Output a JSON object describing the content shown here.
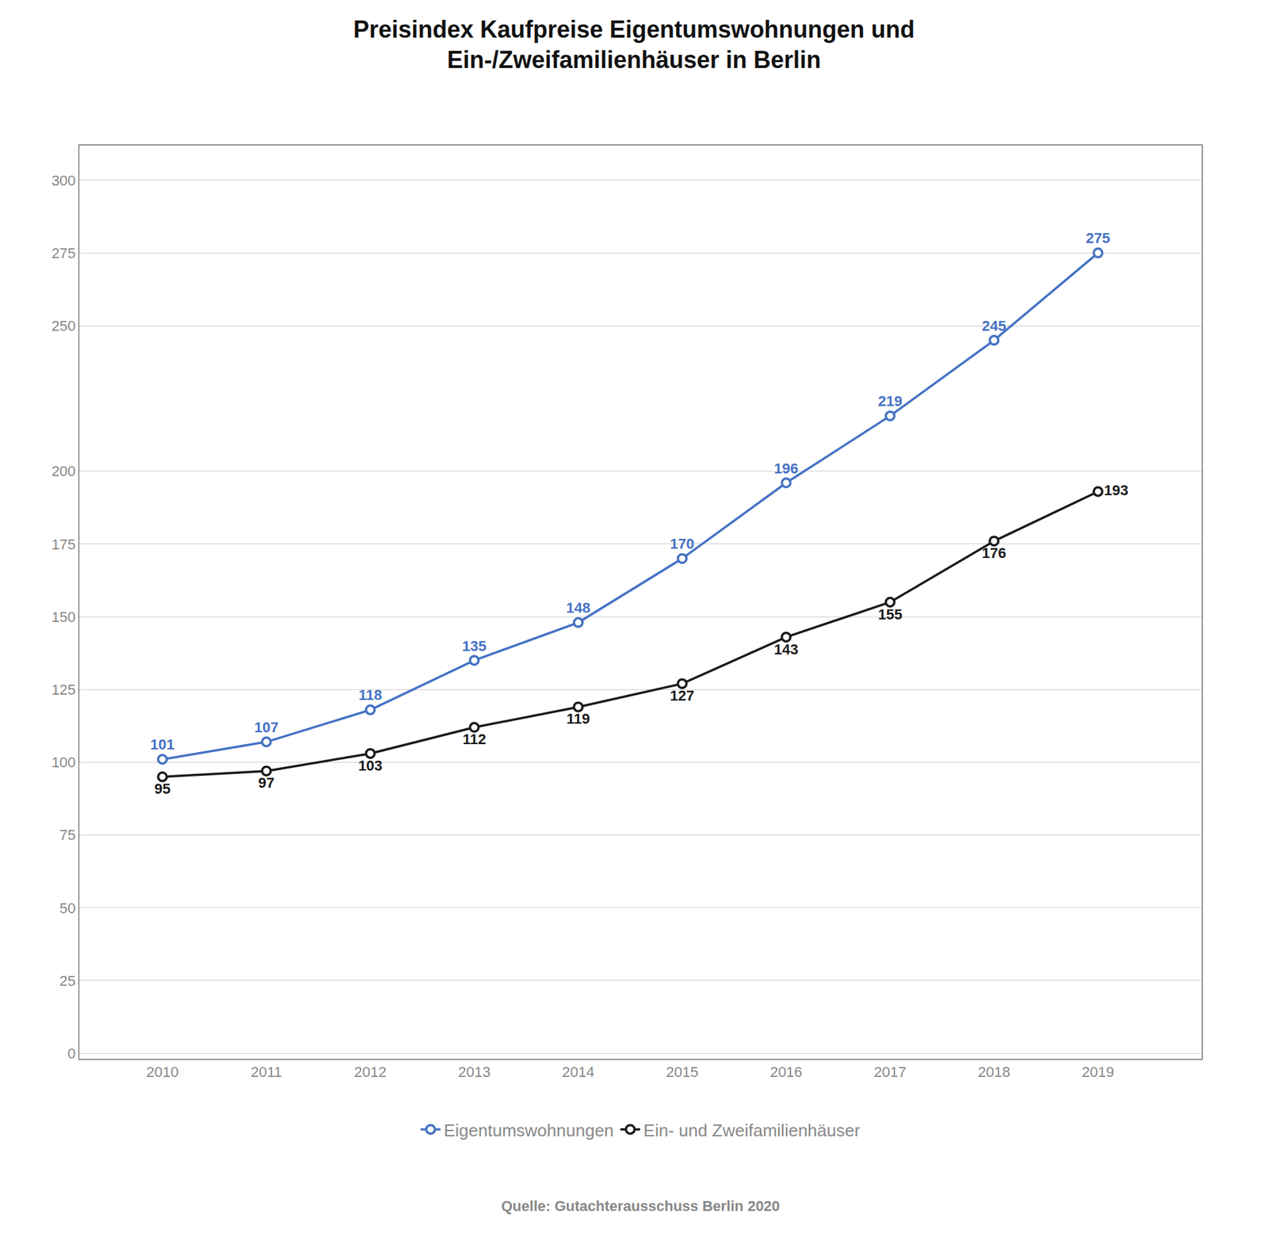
{
  "chart_data": {
    "type": "line",
    "title": "Preisindex Kaufpreise Eigentumswohnungen und\nEin-/Zweifamilienhäuser in Berlin",
    "x": [
      2010,
      2011,
      2012,
      2013,
      2014,
      2015,
      2016,
      2017,
      2018,
      2019
    ],
    "series": [
      {
        "name": "Eigentumswohnungen",
        "color": "#4472C4",
        "values": [
          101,
          107,
          118,
          135,
          148,
          170,
          196,
          219,
          245,
          275
        ]
      },
      {
        "name": "Ein- und Zweifamilienhäuser",
        "color": "#1a1a1a",
        "values": [
          95,
          97,
          103,
          112,
          119,
          127,
          143,
          155,
          176,
          193
        ]
      }
    ],
    "xlim": [
      2009.2,
      2020.0
    ],
    "xticks": [
      2010,
      2011,
      2012,
      2013,
      2014,
      2015,
      2016,
      2017,
      2018,
      2019
    ],
    "ylim": [
      -2,
      312
    ],
    "yticks": [
      0,
      25,
      50,
      75,
      100,
      125,
      150,
      175,
      200,
      250,
      275,
      300
    ],
    "grid": true,
    "legend": "bottom",
    "data_labels": true,
    "marker": "circle",
    "annotations": [
      "Quelle: Gutachterausschuss Berlin 2020"
    ]
  }
}
